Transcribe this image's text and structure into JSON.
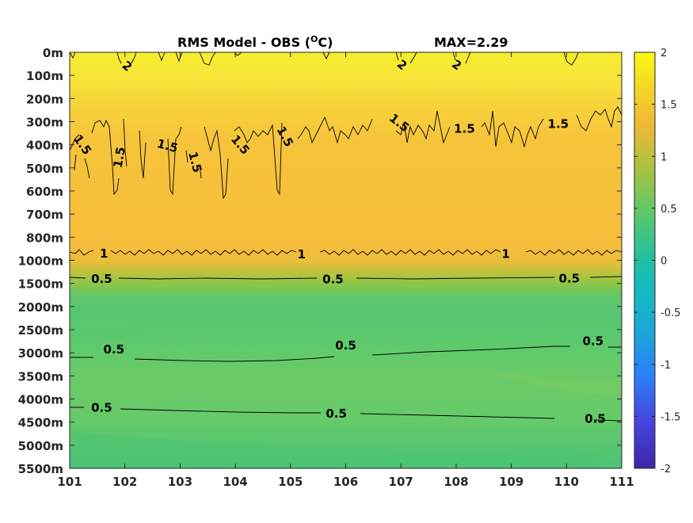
{
  "chart_data": {
    "type": "heatmap",
    "subtype": "filled-contour",
    "title": "RMS Model - OBS (",
    "title_sup": "O",
    "title_unit": "C)",
    "max_label": "MAX=2.29",
    "x_ticks": [
      "101",
      "102",
      "103",
      "104",
      "105",
      "106",
      "107",
      "108",
      "109",
      "110",
      "111"
    ],
    "xlim": [
      101,
      111
    ],
    "y_ticks": [
      "0m",
      "100m",
      "200m",
      "300m",
      "400m",
      "500m",
      "600m",
      "700m",
      "800m",
      "1000m",
      "1500m",
      "2000m",
      "2500m",
      "3000m",
      "3500m",
      "4000m",
      "4500m",
      "5000m",
      "5500m"
    ],
    "y_direction": "reversed (depth increases downward)",
    "colorbar": {
      "ticks": [
        "2",
        "1.5",
        "1",
        "0.5",
        "0",
        "-0.5",
        "-1",
        "-1.5",
        "-2"
      ],
      "range": [
        -2,
        2
      ],
      "colormap": "parula",
      "colors": [
        "#3e26a8",
        "#4744e0",
        "#2c7ff6",
        "#1aa7d9",
        "#20bfa2",
        "#5ac86c",
        "#a9c23f",
        "#f1b935",
        "#f5d823",
        "#f9fb15"
      ]
    },
    "grid": false,
    "legend": "colorbar right",
    "contour_labels": [
      {
        "text": "2",
        "x": 102.04,
        "depth_index": 0.6,
        "angle": 40
      },
      {
        "text": "2",
        "x": 107.02,
        "depth_index": 0.55,
        "angle": 40
      },
      {
        "text": "2",
        "x": 108.01,
        "depth_index": 0.55,
        "angle": 35
      },
      {
        "text": "1.5",
        "x": 101.23,
        "depth_index": 4.0,
        "angle": 55
      },
      {
        "text": "1.5",
        "x": 101.9,
        "depth_index": 4.55,
        "angle": -80
      },
      {
        "text": "1.5",
        "x": 102.77,
        "depth_index": 4.05,
        "angle": 15
      },
      {
        "text": "1.5",
        "x": 103.27,
        "depth_index": 4.75,
        "angle": 75
      },
      {
        "text": "1.5",
        "x": 104.09,
        "depth_index": 4.0,
        "angle": 50
      },
      {
        "text": "1.5",
        "x": 104.9,
        "depth_index": 3.65,
        "angle": 62
      },
      {
        "text": "1.5",
        "x": 106.97,
        "depth_index": 3.05,
        "angle": 38
      },
      {
        "text": "1.5",
        "x": 108.15,
        "depth_index": 3.3,
        "angle": 0
      },
      {
        "text": "1.5",
        "x": 109.85,
        "depth_index": 3.1,
        "angle": 0
      },
      {
        "text": "1",
        "x": 101.62,
        "depth_index": 8.7,
        "angle": 0
      },
      {
        "text": "1",
        "x": 105.2,
        "depth_index": 8.75,
        "angle": 0
      },
      {
        "text": "1",
        "x": 108.9,
        "depth_index": 8.73,
        "angle": 0
      },
      {
        "text": "0.5",
        "x": 101.58,
        "depth_index": 9.8,
        "angle": 0
      },
      {
        "text": "0.5",
        "x": 105.77,
        "depth_index": 9.82,
        "angle": 0
      },
      {
        "text": "0.5",
        "x": 110.05,
        "depth_index": 9.78,
        "angle": 0
      },
      {
        "text": "0.5",
        "x": 101.8,
        "depth_index": 12.85,
        "angle": 0
      },
      {
        "text": "0.5",
        "x": 106.0,
        "depth_index": 12.68,
        "angle": 0
      },
      {
        "text": "0.5",
        "x": 110.48,
        "depth_index": 12.5,
        "angle": 0
      },
      {
        "text": "0.5",
        "x": 101.58,
        "depth_index": 15.38,
        "angle": 0
      },
      {
        "text": "0.5",
        "x": 105.83,
        "depth_index": 15.63,
        "angle": 0
      },
      {
        "text": "0.5",
        "x": 110.52,
        "depth_index": 15.85,
        "angle": 0
      }
    ]
  }
}
